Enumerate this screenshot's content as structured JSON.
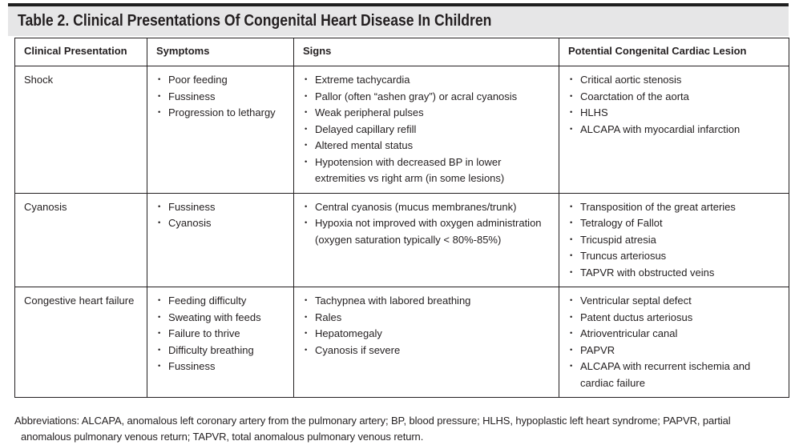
{
  "title": "Table 2. Clinical Presentations Of Congenital Heart Disease In Children",
  "table": {
    "headers": [
      "Clinical Presentation",
      "Symptoms",
      "Signs",
      "Potential Congenital Cardiac Lesion"
    ],
    "rows": [
      {
        "presentation": "Shock",
        "symptoms": [
          "Poor feeding",
          "Fussiness",
          "Progression to lethargy"
        ],
        "signs": [
          "Extreme tachycardia",
          "Pallor (often “ashen gray”) or acral cyanosis",
          "Weak peripheral pulses",
          "Delayed capillary refill",
          "Altered mental status",
          "Hypotension with decreased BP in lower extremities vs right arm (in some lesions)"
        ],
        "lesions": [
          "Critical aortic stenosis",
          "Coarctation of the aorta",
          "HLHS",
          "ALCAPA with myocardial infarction"
        ]
      },
      {
        "presentation": "Cyanosis",
        "symptoms": [
          "Fussiness",
          "Cyanosis"
        ],
        "signs": [
          "Central cyanosis (mucus membranes/trunk)",
          "Hypoxia not improved with oxygen administration (oxygen saturation typically < 80%-85%)"
        ],
        "lesions": [
          "Transposition of the great arteries",
          "Tetralogy of Fallot",
          "Tricuspid atresia",
          "Truncus arteriosus",
          "TAPVR with obstructed veins"
        ]
      },
      {
        "presentation": "Congestive heart failure",
        "symptoms": [
          "Feeding difficulty",
          "Sweating with feeds",
          "Failure to thrive",
          "Difficulty breathing",
          "Fussiness"
        ],
        "signs": [
          "Tachypnea with labored breathing",
          "Rales",
          "Hepatomegaly",
          "Cyanosis if severe"
        ],
        "lesions": [
          "Ventricular septal defect",
          "Patent ductus arteriosus",
          "Atrioventricular canal",
          "PAPVR",
          "ALCAPA with recurrent ischemia and cardiac failure"
        ]
      }
    ]
  },
  "footnote": "Abbreviations: ALCAPA, anomalous left coronary artery from the pulmonary artery; BP, blood pressure; HLHS, hypoplastic left heart syndrome; PAPVR, partial anomalous pulmonary venous return; TAPVR, total anomalous pulmonary venous return.",
  "colors": {
    "title_bar_bg": "#e6e6e7",
    "text": "#231f20",
    "border": "#231f20",
    "top_rule": "#1f1f1f"
  }
}
